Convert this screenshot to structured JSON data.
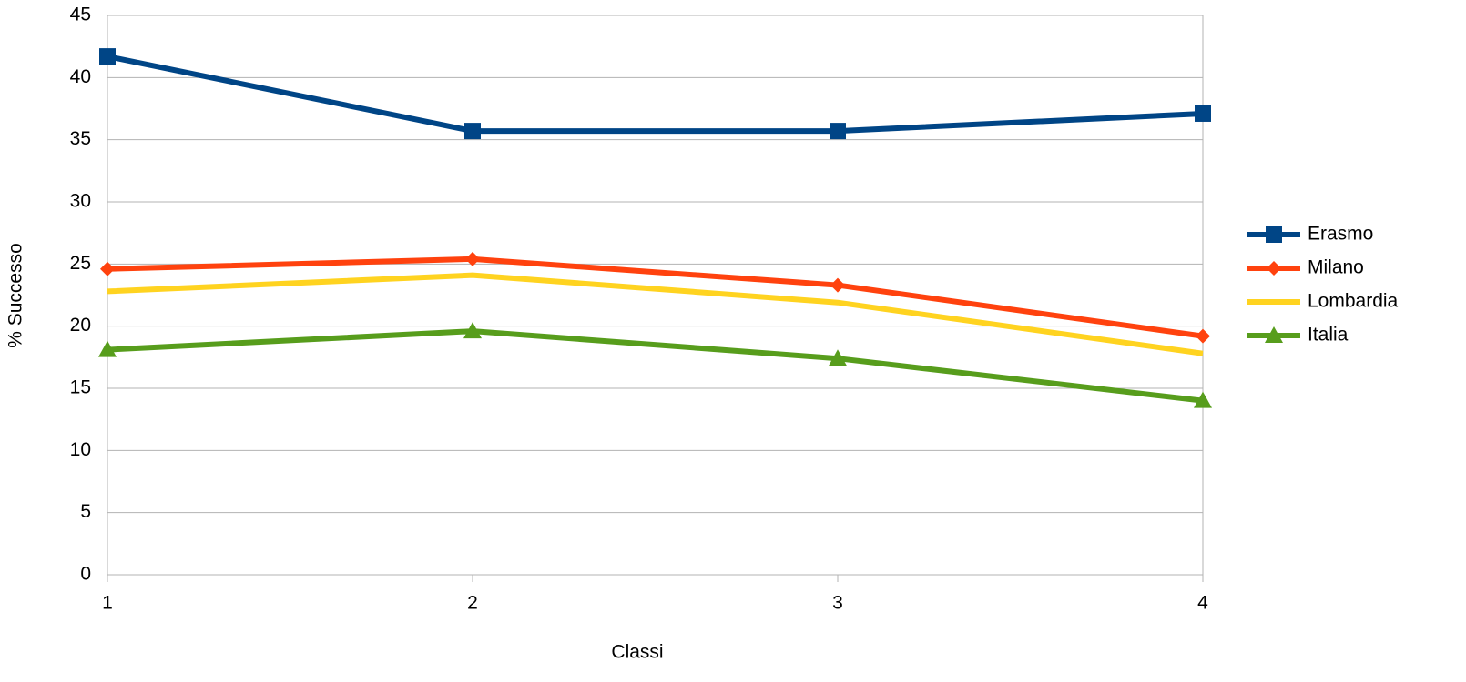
{
  "chart_data": {
    "type": "line",
    "x_label": "Classi",
    "y_label": "% Successo",
    "categories": [
      "1",
      "2",
      "3",
      "4"
    ],
    "series": [
      {
        "name": "Erasmo",
        "color": "#004586",
        "marker": "square",
        "values": [
          41.7,
          35.7,
          35.7,
          37.1
        ]
      },
      {
        "name": "Milano",
        "color": "#ff420e",
        "marker": "diamond",
        "values": [
          24.6,
          25.4,
          23.3,
          19.2
        ]
      },
      {
        "name": "Lombardia",
        "color": "#ffd320",
        "marker": "none",
        "values": [
          22.8,
          24.1,
          21.9,
          17.8
        ]
      },
      {
        "name": "Italia",
        "color": "#579d1c",
        "marker": "triangle",
        "values": [
          18.1,
          19.6,
          17.4,
          14.0
        ]
      }
    ],
    "ylim": [
      0,
      45
    ],
    "yticks": [
      0,
      5,
      10,
      15,
      20,
      25,
      30,
      35,
      40,
      45
    ],
    "grid": true,
    "legend": "right"
  }
}
